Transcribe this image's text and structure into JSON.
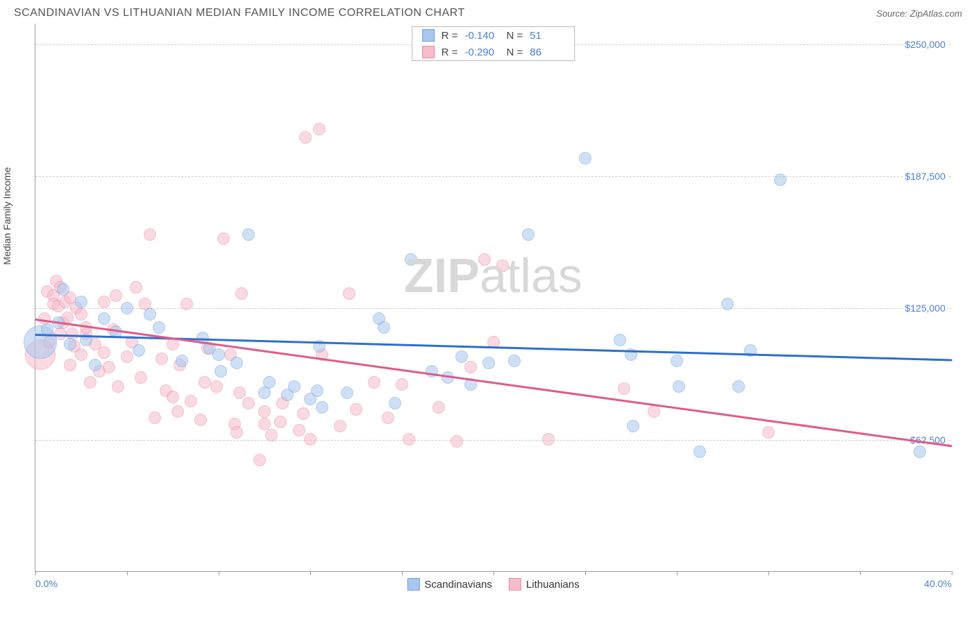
{
  "header": {
    "title": "SCANDINAVIAN VS LITHUANIAN MEDIAN FAMILY INCOME CORRELATION CHART",
    "source_label": "Source:",
    "source_value": "ZipAtlas.com"
  },
  "chart": {
    "type": "scatter",
    "ylabel": "Median Family Income",
    "watermark_a": "ZIP",
    "watermark_b": "atlas",
    "xlim": [
      0,
      40
    ],
    "ylim": [
      0,
      260000
    ],
    "x_ticks": [
      0,
      4,
      8,
      12,
      16,
      20,
      24,
      28,
      32,
      36,
      40
    ],
    "x_tick_labels": {
      "0": "0.0%",
      "40": "40.0%"
    },
    "y_gridlines": [
      62500,
      125000,
      187500,
      250000
    ],
    "y_tick_labels": {
      "62500": "$62,500",
      "125000": "$125,000",
      "187500": "$187,500",
      "250000": "$250,000"
    },
    "grid_color": "#cccccc",
    "axis_color": "#999999",
    "tick_label_color": "#4a7fd6",
    "background_color": "#ffffff",
    "point_radius": 9,
    "point_opacity": 0.55,
    "series": [
      {
        "name": "Scandinavians",
        "fill": "#a9c7ef",
        "stroke": "#6f9fde",
        "trend_color": "#2b6fd0",
        "R": "-0.140",
        "N": "51",
        "trend": {
          "x1": 0,
          "y1": 113000,
          "x2": 40,
          "y2": 101000
        },
        "points": [
          [
            0.2,
            109000,
            24
          ],
          [
            0.5,
            115000
          ],
          [
            1.0,
            118000
          ],
          [
            1.2,
            134000
          ],
          [
            1.5,
            108000
          ],
          [
            2.0,
            128000
          ],
          [
            2.2,
            110000
          ],
          [
            2.6,
            98000
          ],
          [
            3.0,
            120000
          ],
          [
            3.5,
            114000
          ],
          [
            4.0,
            125000
          ],
          [
            4.5,
            105000
          ],
          [
            5.0,
            122000
          ],
          [
            5.4,
            116000
          ],
          [
            6.4,
            100000
          ],
          [
            7.3,
            111000
          ],
          [
            7.6,
            106000
          ],
          [
            8.0,
            103000
          ],
          [
            8.1,
            95000
          ],
          [
            8.8,
            99000
          ],
          [
            9.3,
            160000
          ],
          [
            10.0,
            85000
          ],
          [
            10.2,
            90000
          ],
          [
            11.0,
            84000
          ],
          [
            11.3,
            88000
          ],
          [
            12.0,
            82000
          ],
          [
            12.3,
            86000
          ],
          [
            12.4,
            107000
          ],
          [
            12.5,
            78000
          ],
          [
            13.6,
            85000
          ],
          [
            15.0,
            120000
          ],
          [
            15.2,
            116000
          ],
          [
            15.7,
            80000
          ],
          [
            16.4,
            148000
          ],
          [
            17.3,
            95000
          ],
          [
            18.0,
            92000
          ],
          [
            18.6,
            102000
          ],
          [
            19.0,
            89000
          ],
          [
            19.8,
            99000
          ],
          [
            20.9,
            100000
          ],
          [
            21.5,
            160000
          ],
          [
            24.0,
            196000
          ],
          [
            25.5,
            110000
          ],
          [
            26.0,
            103000
          ],
          [
            26.1,
            69000
          ],
          [
            28.0,
            100000
          ],
          [
            28.1,
            88000
          ],
          [
            29.0,
            57000
          ],
          [
            30.2,
            127000
          ],
          [
            30.7,
            88000
          ],
          [
            31.2,
            105000
          ],
          [
            32.5,
            186000
          ],
          [
            38.6,
            57000
          ]
        ]
      },
      {
        "name": "Lithuanians",
        "fill": "#f6bccb",
        "stroke": "#e88aa5",
        "trend_color": "#e05a87",
        "R": "-0.290",
        "N": "86",
        "trend": {
          "x1": 0,
          "y1": 120000,
          "x2": 40,
          "y2": 60000
        },
        "points": [
          [
            0.2,
            103000,
            22
          ],
          [
            0.4,
            120000
          ],
          [
            0.5,
            133000
          ],
          [
            0.6,
            109000
          ],
          [
            0.8,
            131000
          ],
          [
            0.8,
            127000
          ],
          [
            0.9,
            138000
          ],
          [
            1.0,
            126000
          ],
          [
            1.1,
            113000
          ],
          [
            1.1,
            135000
          ],
          [
            1.2,
            118000
          ],
          [
            1.3,
            128000
          ],
          [
            1.4,
            120500
          ],
          [
            1.5,
            130000
          ],
          [
            1.5,
            98000
          ],
          [
            1.6,
            113000
          ],
          [
            1.7,
            107000
          ],
          [
            1.8,
            125000
          ],
          [
            2.0,
            122000
          ],
          [
            2.0,
            103000
          ],
          [
            2.2,
            113000
          ],
          [
            2.2,
            116000
          ],
          [
            2.4,
            90000
          ],
          [
            2.6,
            108000
          ],
          [
            2.8,
            95000
          ],
          [
            3.0,
            104000
          ],
          [
            3.0,
            128000
          ],
          [
            3.2,
            97000
          ],
          [
            3.4,
            115000
          ],
          [
            3.5,
            131000
          ],
          [
            3.6,
            88000
          ],
          [
            4.0,
            102000
          ],
          [
            4.2,
            109000
          ],
          [
            4.4,
            135000
          ],
          [
            4.6,
            92000
          ],
          [
            4.8,
            127000
          ],
          [
            5.0,
            160000
          ],
          [
            5.2,
            73000
          ],
          [
            5.5,
            101000
          ],
          [
            5.7,
            86000
          ],
          [
            6.0,
            83000
          ],
          [
            6.0,
            108000
          ],
          [
            6.2,
            76000
          ],
          [
            6.3,
            98000
          ],
          [
            6.6,
            127000
          ],
          [
            6.8,
            81000
          ],
          [
            7.2,
            72000
          ],
          [
            7.4,
            90000
          ],
          [
            7.5,
            106000
          ],
          [
            7.9,
            88000
          ],
          [
            8.2,
            158000
          ],
          [
            8.5,
            103000
          ],
          [
            8.7,
            70000
          ],
          [
            8.8,
            66000
          ],
          [
            8.9,
            85000
          ],
          [
            9.0,
            132000
          ],
          [
            9.3,
            80000
          ],
          [
            9.8,
            53000
          ],
          [
            10.0,
            70000
          ],
          [
            10.0,
            76000
          ],
          [
            10.3,
            65000
          ],
          [
            10.7,
            71000
          ],
          [
            10.8,
            80000
          ],
          [
            11.5,
            67000
          ],
          [
            11.7,
            75000
          ],
          [
            11.8,
            206000
          ],
          [
            12.0,
            63000
          ],
          [
            12.4,
            210000
          ],
          [
            12.5,
            103000
          ],
          [
            13.3,
            69000
          ],
          [
            13.7,
            132000
          ],
          [
            14.0,
            77000
          ],
          [
            14.8,
            90000
          ],
          [
            15.4,
            73000
          ],
          [
            16.0,
            89000
          ],
          [
            16.3,
            63000
          ],
          [
            17.6,
            78000
          ],
          [
            18.4,
            62000
          ],
          [
            19.0,
            97000
          ],
          [
            19.6,
            148000
          ],
          [
            20.0,
            109000
          ],
          [
            20.4,
            145000
          ],
          [
            22.4,
            63000
          ],
          [
            25.7,
            87000
          ],
          [
            27.0,
            76000
          ],
          [
            32.0,
            66000
          ]
        ]
      }
    ],
    "legend_top": {
      "R_label": "R =",
      "N_label": "N ="
    },
    "legend_bottom": {
      "items": [
        "Scandinavians",
        "Lithuanians"
      ]
    }
  }
}
